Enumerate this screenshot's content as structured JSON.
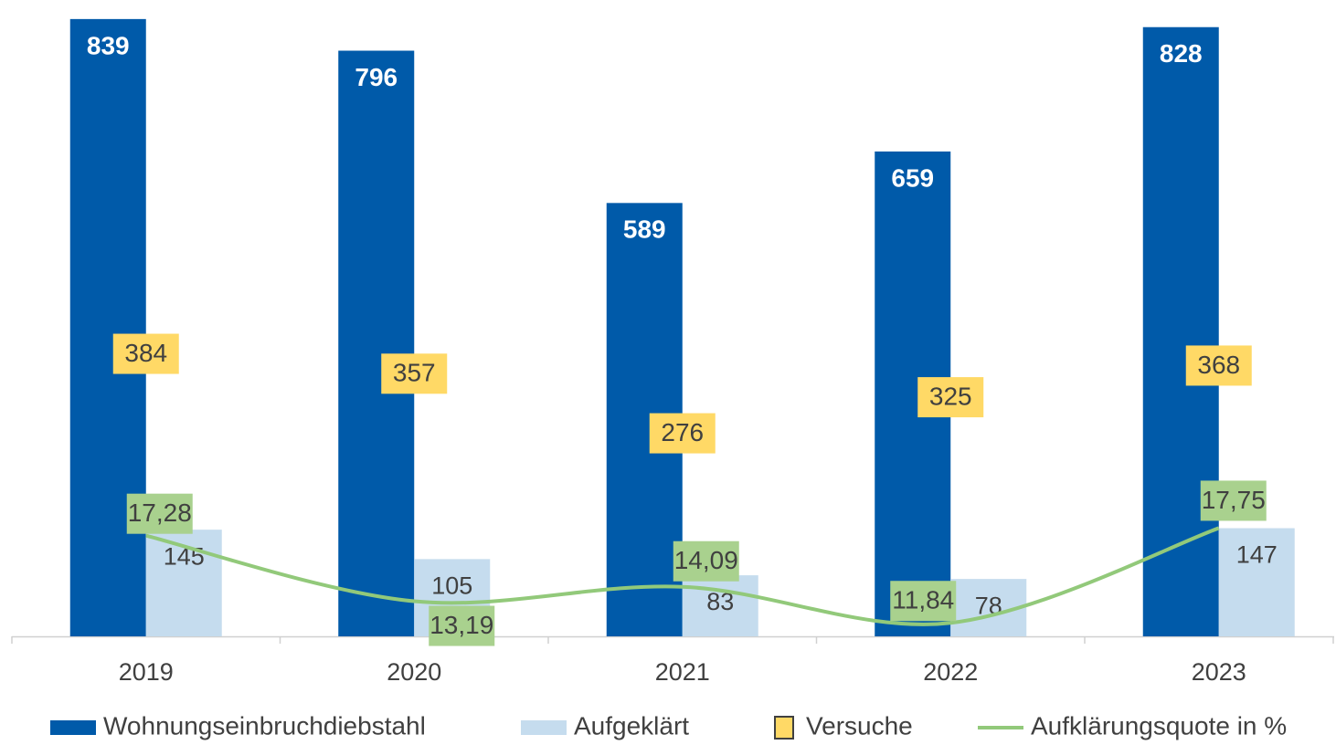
{
  "chart_data": {
    "type": "bar",
    "categories": [
      "2019",
      "2020",
      "2021",
      "2022",
      "2023"
    ],
    "ylim": [
      0,
      850
    ],
    "y2lim": [
      11,
      50
    ],
    "series": [
      {
        "name": "Wohnungseinbruchdiebstahl",
        "type": "bar",
        "color": "#005aa9",
        "values": [
          839,
          796,
          589,
          659,
          828
        ]
      },
      {
        "name": "Aufgeklärt",
        "type": "bar",
        "color": "#c5dcee",
        "values": [
          145,
          105,
          83,
          78,
          147
        ]
      },
      {
        "name": "Versuche",
        "type": "labels",
        "color": "#ffd966",
        "values": [
          384,
          357,
          276,
          325,
          368
        ]
      },
      {
        "name": "Aufklärungsquote in %",
        "type": "line",
        "axis": "y2",
        "color": "#92c97a",
        "values": [
          17.28,
          13.19,
          14.09,
          11.84,
          17.75
        ],
        "value_labels": [
          "17,28",
          "13,19",
          "14,09",
          "11,84",
          "17,75"
        ]
      }
    ]
  }
}
